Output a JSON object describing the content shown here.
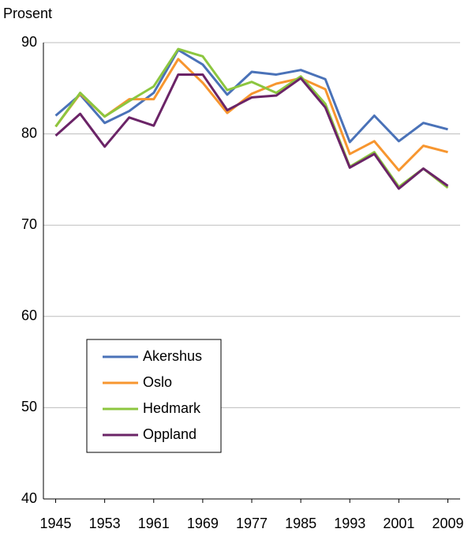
{
  "chart_data": {
    "type": "line",
    "y_label": "Prosent",
    "x": [
      1945,
      1949,
      1953,
      1957,
      1961,
      1965,
      1969,
      1973,
      1977,
      1981,
      1985,
      1989,
      1993,
      1997,
      2001,
      2005,
      2009
    ],
    "series": [
      {
        "name": "Akershus",
        "color": "#4a72b8",
        "values": [
          82.0,
          84.3,
          81.2,
          82.5,
          84.5,
          89.2,
          87.6,
          84.3,
          86.8,
          86.5,
          87.0,
          86.0,
          79.1,
          82.0,
          79.2,
          81.2,
          80.5
        ]
      },
      {
        "name": "Oslo",
        "color": "#f7962f",
        "values": [
          80.8,
          84.4,
          81.9,
          83.8,
          83.8,
          88.2,
          85.6,
          82.3,
          84.4,
          85.5,
          86.1,
          84.9,
          77.8,
          79.2,
          76.0,
          78.7,
          78.0
        ]
      },
      {
        "name": "Hedmark",
        "color": "#8cc63f",
        "values": [
          80.8,
          84.5,
          81.9,
          83.6,
          85.2,
          89.3,
          88.5,
          84.8,
          85.7,
          84.5,
          86.3,
          83.3,
          76.4,
          78.0,
          74.2,
          76.2,
          74.1
        ]
      },
      {
        "name": "Oppland",
        "color": "#6b2467",
        "values": [
          79.8,
          82.2,
          78.6,
          81.8,
          80.9,
          86.5,
          86.5,
          82.6,
          84.0,
          84.2,
          86.1,
          82.9,
          76.3,
          77.8,
          74.0,
          76.2,
          74.3
        ]
      }
    ],
    "xlim": [
      1943,
      2011
    ],
    "xticks": [
      1945,
      1953,
      1961,
      1969,
      1977,
      1985,
      1993,
      2001,
      2009
    ],
    "ylim": [
      40,
      90
    ],
    "yticks": [
      40,
      50,
      60,
      70,
      80,
      90
    ],
    "grid": true
  }
}
